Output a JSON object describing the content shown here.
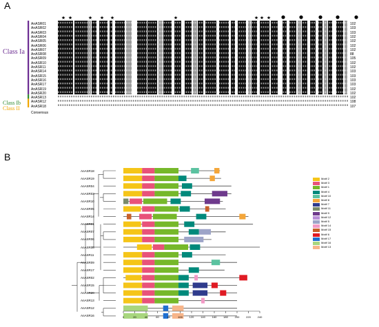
{
  "panel_a": {
    "letter": "A",
    "sequences": [
      "AnASR01",
      "AnASR02",
      "AnASR03",
      "AnASR04",
      "AnASR05",
      "AnASR06",
      "AnASR07",
      "AnASR08",
      "AnASR09",
      "AnASR10",
      "AnASR11",
      "AnASR14",
      "AnASR15",
      "AnASR16",
      "AnASR17",
      "AnASR19",
      "AnASR20",
      "AnASR13",
      "AnASR12",
      "AnASR18"
    ],
    "lengths": [
      "102",
      "103",
      "103",
      "102",
      "102",
      "102",
      "102",
      "88",
      "105",
      "102",
      "102",
      "103",
      "103",
      "103",
      "103",
      "102",
      "102",
      "102",
      "108",
      "107"
    ],
    "consensus_label": "Consensus",
    "class_labels": {
      "ia": "Class Ia",
      "ib": "Class Ib",
      "ii": "Class II"
    },
    "colors": {
      "ia": "#6b2c91",
      "ib": "#2f8a2f",
      "ii": "#f0a500"
    }
  },
  "panel_b": {
    "letter": "B",
    "genes": [
      "AnASR18",
      "AnASR19",
      "AnASR04",
      "AnASR03",
      "AnASR10",
      "AnASR05",
      "AnASR14",
      "AnASR01",
      "AnASR07",
      "AnASR06",
      "AnASR08",
      "AnASR11",
      "AnASR09",
      "AnASR17",
      "AnASR02",
      "AnASR15",
      "AnASR20",
      "AnASR13",
      "AnASR12",
      "AnASR16"
    ],
    "axis_ticks": [
      "0",
      "20",
      "40",
      "60",
      "80",
      "100",
      "120",
      "140",
      "160",
      "180",
      "200",
      "220",
      "240"
    ],
    "legend": [
      {
        "label": "Motif 2",
        "color": "#f5c518"
      },
      {
        "label": "Motif 3",
        "color": "#e8527a"
      },
      {
        "label": "Motif 1",
        "color": "#76b82a"
      },
      {
        "label": "Motif 4",
        "color": "#00897b"
      },
      {
        "label": "Motif 10",
        "color": "#5bc2a0"
      },
      {
        "label": "Motif 8",
        "color": "#f4a63a"
      },
      {
        "label": "Motif 7",
        "color": "#2f3b8c"
      },
      {
        "label": "Motif 11",
        "color": "#7a8b6b"
      },
      {
        "label": "Motif 9",
        "color": "#6e3a8c"
      },
      {
        "label": "Motif 12",
        "color": "#b98fd8"
      },
      {
        "label": "Motif 5",
        "color": "#9da4c8"
      },
      {
        "label": "Motif 14",
        "color": "#f29ac6"
      },
      {
        "label": "Motif 15",
        "color": "#c8602a"
      },
      {
        "label": "Motif 6",
        "color": "#e01b24"
      },
      {
        "label": "Motif 17",
        "color": "#1f6fd1"
      },
      {
        "label": "Motif 16",
        "color": "#a8d67e"
      },
      {
        "label": "Motif 13",
        "color": "#f7b58a"
      }
    ]
  }
}
